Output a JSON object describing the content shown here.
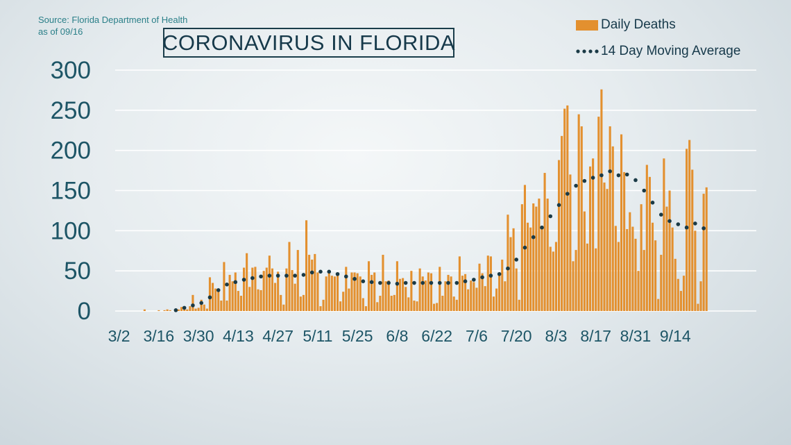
{
  "source": {
    "line1": "Source: Florida Department of Health",
    "line2": "as of 09/16"
  },
  "title": "CORONAVIRUS IN FLORIDA",
  "legend": {
    "bars_label": "Daily Deaths",
    "line_label": "14 Day Moving Average"
  },
  "colors": {
    "bar": "#e3902f",
    "line": "#1a3a46",
    "axis_text": "#1d5566",
    "grid": "#ffffff",
    "title_text": "#16394a",
    "source_text": "#2a7f88"
  },
  "chart_data": {
    "type": "bar",
    "title": "CORONAVIRUS IN FLORIDA",
    "x_start": "3/1",
    "x_end": "9/15",
    "x_ticks": [
      "3/2",
      "3/16",
      "3/30",
      "4/13",
      "4/27",
      "5/11",
      "5/25",
      "6/8",
      "6/22",
      "7/6",
      "7/20",
      "8/3",
      "8/17",
      "8/31",
      "9/14"
    ],
    "y_ticks": [
      0,
      50,
      100,
      150,
      200,
      250,
      300
    ],
    "ylim": [
      0,
      300
    ],
    "grid": true,
    "legend_position": "top-right",
    "series": [
      {
        "name": "Daily Deaths",
        "type": "bar",
        "values": [
          0,
          0,
          0,
          0,
          0,
          0,
          0,
          0,
          0,
          0,
          2,
          0,
          0,
          0,
          0,
          1,
          0,
          1,
          2,
          1,
          0,
          1,
          2,
          5,
          3,
          2,
          6,
          20,
          3,
          4,
          14,
          8,
          3,
          42,
          35,
          28,
          26,
          13,
          61,
          13,
          45,
          37,
          48,
          25,
          19,
          54,
          72,
          30,
          54,
          55,
          27,
          26,
          50,
          54,
          69,
          53,
          35,
          49,
          20,
          8,
          53,
          86,
          51,
          34,
          76,
          18,
          20,
          113,
          70,
          64,
          71,
          48,
          6,
          14,
          43,
          50,
          44,
          43,
          47,
          12,
          24,
          55,
          28,
          48,
          48,
          47,
          43,
          16,
          6,
          62,
          45,
          48,
          11,
          19,
          70,
          37,
          38,
          19,
          20,
          62,
          40,
          41,
          30,
          17,
          50,
          13,
          12,
          53,
          43,
          38,
          48,
          47,
          9,
          10,
          55,
          19,
          37,
          45,
          43,
          18,
          14,
          68,
          44,
          46,
          27,
          38,
          36,
          29,
          59,
          47,
          31,
          69,
          68,
          18,
          28,
          44,
          64,
          37,
          120,
          92,
          103,
          53,
          14,
          133,
          157,
          110,
          104,
          134,
          130,
          140,
          105,
          172,
          140,
          80,
          74,
          86,
          188,
          218,
          252,
          256,
          170,
          62,
          76,
          245,
          230,
          124,
          84,
          180,
          190,
          78,
          242,
          276,
          160,
          152,
          230,
          205,
          106,
          86,
          220,
          173,
          102,
          123,
          105,
          90,
          50,
          133,
          76,
          182,
          167,
          110,
          88,
          15,
          70,
          190,
          130,
          150,
          104,
          65,
          40,
          25,
          44,
          202,
          213,
          176,
          100,
          9,
          37,
          146,
          154
        ]
      },
      {
        "name": "14 Day Moving Average",
        "type": "line",
        "values": [
          null,
          null,
          null,
          null,
          null,
          null,
          null,
          null,
          null,
          null,
          null,
          null,
          null,
          null,
          null,
          null,
          null,
          null,
          null,
          null,
          null,
          1,
          2,
          3,
          4,
          5,
          6,
          7,
          8,
          9,
          10,
          12,
          14,
          17,
          20,
          23,
          26,
          29,
          31,
          33,
          34,
          35,
          36,
          37,
          38,
          39,
          40,
          41,
          41,
          42,
          42,
          43,
          43,
          43,
          44,
          44,
          44,
          44,
          44,
          44,
          44,
          44,
          44,
          44,
          44,
          45,
          45,
          46,
          47,
          48,
          49,
          49,
          49,
          49,
          49,
          49,
          48,
          47,
          46,
          45,
          44,
          43,
          42,
          41,
          40,
          39,
          38,
          37,
          36,
          36,
          36,
          36,
          35,
          35,
          35,
          35,
          35,
          34,
          34,
          34,
          34,
          34,
          35,
          35,
          35,
          35,
          35,
          35,
          35,
          35,
          35,
          35,
          35,
          35,
          35,
          35,
          35,
          35,
          35,
          35,
          35,
          35,
          36,
          37,
          38,
          38,
          39,
          40,
          41,
          42,
          42,
          43,
          44,
          44,
          45,
          46,
          48,
          50,
          53,
          56,
          60,
          64,
          69,
          74,
          79,
          84,
          88,
          92,
          96,
          100,
          104,
          109,
          114,
          118,
          122,
          127,
          132,
          137,
          141,
          146,
          150,
          153,
          156,
          158,
          160,
          162,
          164,
          165,
          166,
          167,
          168,
          169,
          170,
          172,
          174,
          172,
          170,
          169,
          170,
          170,
          170,
          169,
          167,
          163,
          159,
          155,
          150,
          145,
          140,
          135,
          130,
          124,
          120,
          116,
          113,
          112,
          111,
          110,
          108,
          105,
          100,
          104,
          108,
          111,
          109,
          106,
          104,
          103
        ]
      }
    ]
  }
}
